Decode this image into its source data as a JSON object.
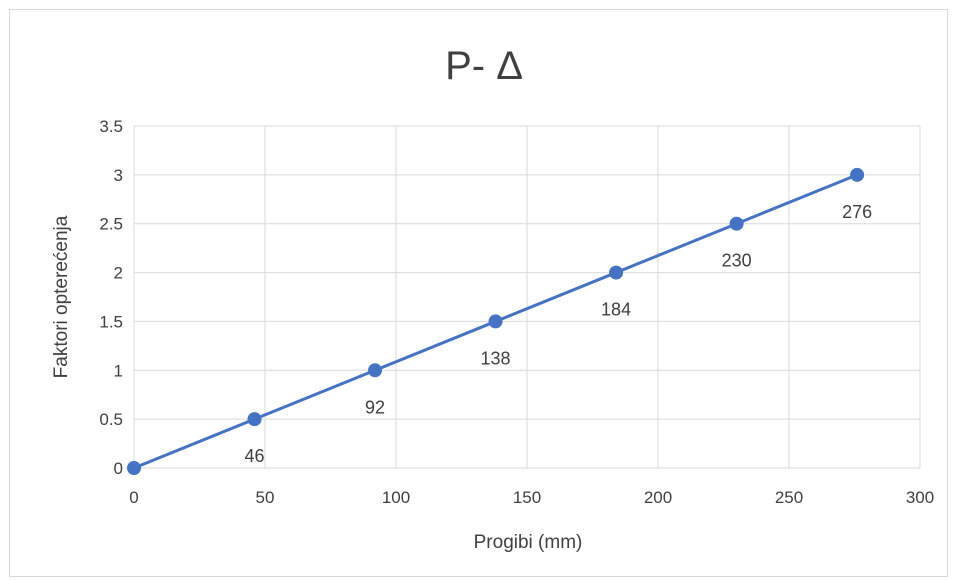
{
  "chart_data": {
    "type": "line",
    "title": "P- Δ",
    "xlabel": "Progibi (mm)",
    "ylabel": "Faktori opterećenja",
    "xlim": [
      0,
      300
    ],
    "ylim": [
      0,
      3.5
    ],
    "xticks": [
      0,
      50,
      100,
      150,
      200,
      250,
      300
    ],
    "yticks": [
      0,
      0.5,
      1,
      1.5,
      2,
      2.5,
      3,
      3.5
    ],
    "grid": true,
    "series": [
      {
        "x": [
          0,
          46,
          92,
          138,
          184,
          230,
          276
        ],
        "y": [
          0,
          0.5,
          1,
          1.5,
          2,
          2.5,
          3
        ],
        "data_labels": [
          "",
          "46",
          "92",
          "138",
          "184",
          "230",
          "276"
        ],
        "color": "#4472c4"
      }
    ]
  }
}
